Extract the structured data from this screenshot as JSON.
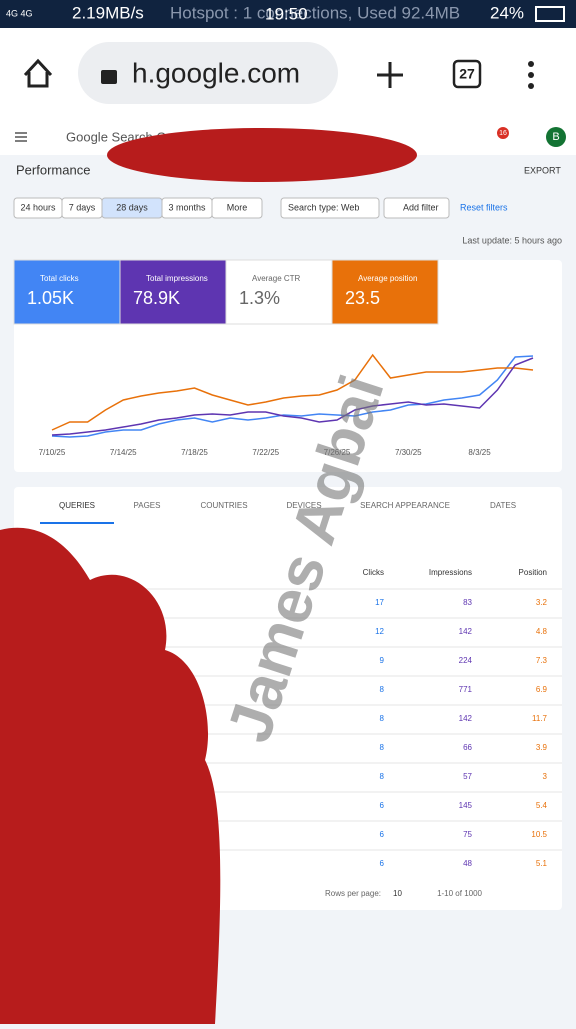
{
  "status": {
    "network": "4G 4G",
    "speed": "2.19MB/s",
    "hotspot": "Hotspot : 1 connections, Used 92.4MB",
    "time": "19:50",
    "battery": "24%"
  },
  "browser": {
    "url": "h.google.com",
    "tabs": "27"
  },
  "header": {
    "app": "Google Search Console",
    "notifications": "16",
    "avatar": "B",
    "section": "Performance",
    "export": "EXPORT"
  },
  "filters": {
    "ranges": [
      "24 hours",
      "7 days",
      "28 days",
      "3 months",
      "More"
    ],
    "search_type": "Search type: Web",
    "add_filter": "Add filter",
    "reset": "Reset filters",
    "last_update": "Last update: 5 hours ago"
  },
  "metrics": [
    {
      "label": "Total clicks",
      "value": "1.05K",
      "color": "#4285f4"
    },
    {
      "label": "Total impressions",
      "value": "78.9K",
      "color": "#5e35b1"
    },
    {
      "label": "Average CTR",
      "value": "1.3%",
      "color": "#ffffff"
    },
    {
      "label": "Average position",
      "value": "23.5",
      "color": "#e8710a"
    }
  ],
  "chart_data": {
    "type": "line",
    "categories": [
      "7/10/25",
      null,
      null,
      null,
      "7/14/25",
      null,
      null,
      null,
      "7/18/25",
      null,
      null,
      null,
      "7/22/25",
      null,
      null,
      null,
      "7/26/25",
      null,
      null,
      null,
      "7/30/25",
      null,
      null,
      null,
      "8/3/25",
      null,
      null,
      null
    ],
    "ylim": [
      0,
      100
    ],
    "series": [
      {
        "name": "Total clicks",
        "color": "#4285f4",
        "values": [
          9,
          8,
          9,
          13,
          15,
          15,
          21,
          25,
          27,
          23,
          27,
          25,
          27,
          30,
          29,
          31,
          30,
          29,
          33,
          35,
          40,
          41,
          45,
          47,
          50,
          65,
          88,
          89
        ]
      },
      {
        "name": "Average position",
        "color": "#e8710a",
        "values": [
          15,
          23,
          23,
          35,
          45,
          49,
          52,
          54,
          57,
          50,
          45,
          40,
          43,
          47,
          49,
          50,
          55,
          65,
          90,
          67,
          70,
          73,
          73,
          73,
          75,
          77,
          77,
          75
        ]
      },
      {
        "name": "Total impressions",
        "color": "#5e35b1",
        "values": [
          10,
          11,
          13,
          15,
          18,
          21,
          25,
          27,
          30,
          31,
          30,
          33,
          33,
          29,
          27,
          23,
          25,
          35,
          39,
          41,
          43,
          40,
          41,
          39,
          37,
          55,
          80,
          87
        ]
      }
    ]
  },
  "tabs": [
    "QUERIES",
    "PAGES",
    "COUNTRIES",
    "DEVICES",
    "SEARCH APPEARANCE",
    "DATES"
  ],
  "table": {
    "columns": [
      "Clicks",
      "Impressions",
      "Position"
    ],
    "rows": [
      [
        17,
        83,
        3.2
      ],
      [
        12,
        142,
        4.8
      ],
      [
        9,
        224,
        7.3
      ],
      [
        8,
        771,
        6.9
      ],
      [
        8,
        142,
        11.7
      ],
      [
        8,
        66,
        3.9
      ],
      [
        8,
        57,
        3.0
      ],
      [
        6,
        145,
        5.4
      ],
      [
        6,
        75,
        10.5
      ],
      [
        6,
        48,
        5.1
      ]
    ]
  },
  "pagination": {
    "rows_label": "Rows per page:",
    "rows": "10",
    "range": "1-10 of 1000"
  },
  "watermark": "James Agbai"
}
